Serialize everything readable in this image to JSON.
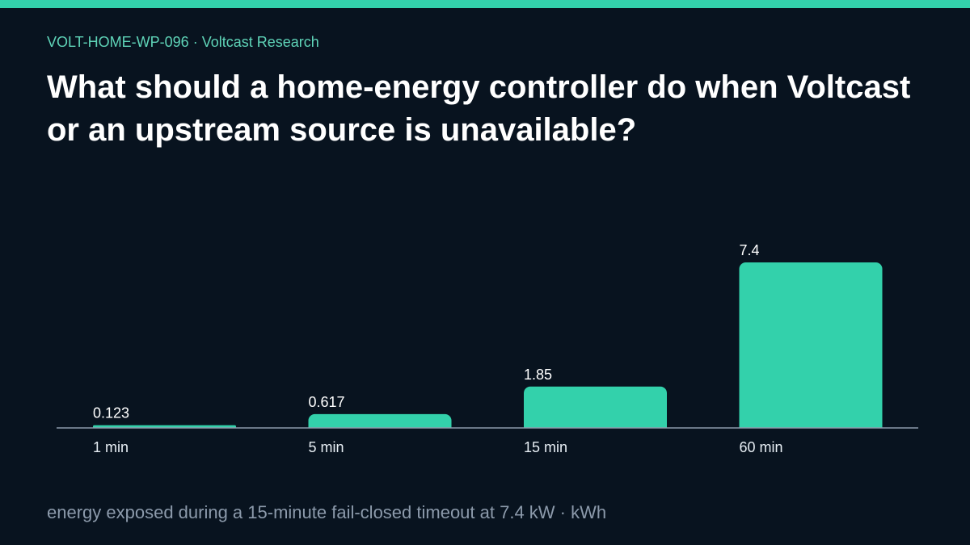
{
  "header": {
    "eyebrow": "VOLT-HOME-WP-096 · Voltcast Research",
    "title": "What should a home-energy controller do when Voltcast or an upstream source is unavailable?"
  },
  "caption": "energy exposed during a 15-minute fail-closed timeout at 7.4 kW · kWh",
  "colors": {
    "accent": "#33d1ab",
    "background": "#08131f",
    "axis": "#8c9aab"
  },
  "chart_data": {
    "type": "bar",
    "categories": [
      "1 min",
      "5 min",
      "15 min",
      "60 min"
    ],
    "values": [
      0.123,
      0.617,
      1.85,
      7.4
    ],
    "value_labels": [
      "0.123",
      "0.617",
      "1.85",
      "7.4"
    ],
    "ylim": [
      0,
      7.4
    ],
    "grid": false,
    "legend": "none"
  }
}
